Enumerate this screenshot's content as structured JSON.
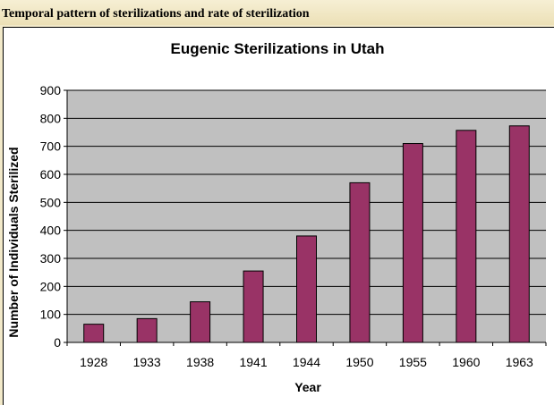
{
  "caption": "Temporal pattern of sterilizations and rate of sterilization",
  "colors": {
    "plot_background": "#c0c0c0",
    "bar_fill": "#993366",
    "bar_stroke": "#000000",
    "gridline": "#000000",
    "page_background": "#f2e9c9"
  },
  "chart_data": {
    "type": "bar",
    "title": "Eugenic Sterilizations in Utah",
    "xlabel": "Year",
    "ylabel": "Number of Individuals Sterilized",
    "categories": [
      "1928",
      "1933",
      "1938",
      "1941",
      "1944",
      "1950",
      "1955",
      "1960",
      "1963"
    ],
    "values": [
      65,
      85,
      145,
      255,
      380,
      570,
      710,
      757,
      773
    ],
    "ylim": [
      0,
      900
    ],
    "yticks": [
      0,
      100,
      200,
      300,
      400,
      500,
      600,
      700,
      800,
      900
    ],
    "grid": true,
    "legend": false
  }
}
